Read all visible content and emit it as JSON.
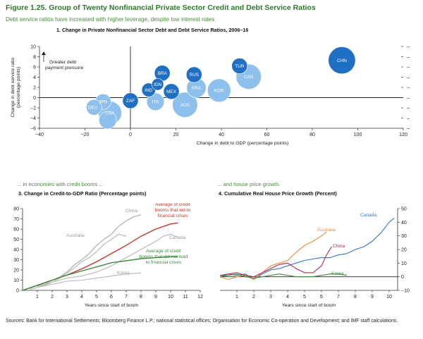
{
  "figure": {
    "title": "Figure 1.25. Group of Twenty Nonfinancial Private Sector Credit and Debt Service Ratios",
    "subtitle": "Debt service ratios have increased with higher leverage, despite low interest rates.",
    "section_left": "... in economies with credit booms ...",
    "section_right": "... and house price growth.",
    "sources": "Sources: Bank for International Settlements; Bloomberg Finance L.P.; national statistical offices; Organisation for Economic Co-operation and Development; and IMF staff calculations."
  },
  "chart_data": [
    {
      "type": "scatter",
      "title": "1. Change in Private Nonfinancial Sector Debt and Debt Service Ratios, 2006–16",
      "xlabel": "Change in debt to GDP (percentage points)",
      "ylabel": "Change in debt service ratio (percentage points)",
      "xlim": [
        -40,
        120
      ],
      "ylim": [
        -6,
        10
      ],
      "xticks": [
        -40,
        -20,
        0,
        20,
        40,
        60,
        80,
        100,
        120
      ],
      "yticks": [
        -6,
        -4,
        -2,
        0,
        2,
        4,
        6,
        8,
        10
      ],
      "annotation": "Greater debt payment pressure",
      "colors": {
        "dark": "#1f6fc2",
        "light": "#8ec0ee"
      },
      "points": [
        {
          "label": "CHN",
          "x": 93,
          "y": 7.3,
          "size": 12,
          "shade": "dark"
        },
        {
          "label": "TUR",
          "x": 48,
          "y": 6.2,
          "size": 6,
          "shade": "dark"
        },
        {
          "label": "CAN",
          "x": 52,
          "y": 4.1,
          "size": 11,
          "shade": "light"
        },
        {
          "label": "RUS",
          "x": 28,
          "y": 4.5,
          "size": 6,
          "shade": "dark"
        },
        {
          "label": "KOR",
          "x": 39,
          "y": 1.4,
          "size": 10,
          "shade": "light"
        },
        {
          "label": "FRA",
          "x": 29,
          "y": 1.9,
          "size": 8,
          "shade": "light"
        },
        {
          "label": "BRA",
          "x": 14,
          "y": 4.8,
          "size": 6,
          "shade": "dark"
        },
        {
          "label": "IDN",
          "x": 12,
          "y": 2.6,
          "size": 4,
          "shade": "dark"
        },
        {
          "label": "IND",
          "x": 8,
          "y": 1.5,
          "size": 5,
          "shade": "dark"
        },
        {
          "label": "MEX",
          "x": 18,
          "y": 1.2,
          "size": 6,
          "shade": "dark"
        },
        {
          "label": "ITA",
          "x": 11,
          "y": -0.8,
          "size": 7,
          "shade": "light"
        },
        {
          "label": "AUS",
          "x": 24,
          "y": -1.4,
          "size": 11,
          "shade": "light"
        },
        {
          "label": "ZAF",
          "x": 0,
          "y": -0.6,
          "size": 6,
          "shade": "dark"
        },
        {
          "label": "JPN",
          "x": -12,
          "y": -0.8,
          "size": 6,
          "shade": "light"
        },
        {
          "label": "DEU",
          "x": -16,
          "y": -1.9,
          "size": 6,
          "shade": "light"
        },
        {
          "label": "USA",
          "x": -9,
          "y": -3.0,
          "size": 10,
          "shade": "light"
        },
        {
          "label": "GBR",
          "x": -10,
          "y": -4.4,
          "size": 7,
          "shade": "light"
        }
      ]
    },
    {
      "type": "line",
      "title": "3. Change in Credit-to-GDP Ratio (Percentage points)",
      "xlabel": "Years since start of boom",
      "xlim": [
        0,
        12
      ],
      "ylim": [
        0,
        80
      ],
      "xticks": [
        1,
        2,
        3,
        4,
        5,
        6,
        7,
        8,
        9,
        10,
        11,
        12
      ],
      "yticks": [
        0,
        10,
        20,
        30,
        40,
        50,
        60,
        70,
        80
      ],
      "series": [
        {
          "name": "China",
          "color": "#a8a8a8",
          "width": 1.1,
          "points": [
            [
              0.5,
              2
            ],
            [
              1,
              5
            ],
            [
              1.5,
              6
            ],
            [
              2,
              10
            ],
            [
              2.5,
              13
            ],
            [
              3,
              18
            ],
            [
              3.5,
              25
            ],
            [
              4,
              30
            ],
            [
              4.5,
              36
            ],
            [
              5,
              44
            ],
            [
              5.5,
              50
            ],
            [
              6,
              55
            ],
            [
              6.5,
              63
            ],
            [
              7,
              68
            ],
            [
              7.5,
              72
            ],
            [
              8,
              74
            ]
          ]
        },
        {
          "name": "Australia",
          "color": "#b4b4b4",
          "width": 1.1,
          "points": [
            [
              0.5,
              1
            ],
            [
              1,
              3
            ],
            [
              1.5,
              5
            ],
            [
              2,
              8
            ],
            [
              2.5,
              12
            ],
            [
              3,
              17
            ],
            [
              3.5,
              22
            ],
            [
              4,
              28
            ],
            [
              4.5,
              32
            ],
            [
              5,
              38
            ],
            [
              5.5,
              45
            ],
            [
              6,
              50
            ],
            [
              6.5,
              55
            ],
            [
              7,
              53
            ]
          ]
        },
        {
          "name": "Canada",
          "color": "#b4b4b4",
          "width": 1.1,
          "points": [
            [
              1,
              4
            ],
            [
              2,
              8
            ],
            [
              3,
              12
            ],
            [
              4,
              14
            ],
            [
              5,
              18
            ],
            [
              6,
              24
            ],
            [
              7,
              32
            ],
            [
              8,
              40
            ],
            [
              9,
              48
            ],
            [
              9.5,
              53
            ],
            [
              10,
              55
            ],
            [
              10.5,
              52
            ]
          ]
        },
        {
          "name": "Korea",
          "color": "#b8b8b8",
          "width": 1.1,
          "points": [
            [
              1,
              3
            ],
            [
              2,
              6
            ],
            [
              3,
              9
            ],
            [
              4,
              10
            ],
            [
              5,
              12
            ],
            [
              6,
              14
            ],
            [
              7,
              16
            ],
            [
              8,
              17
            ]
          ]
        },
        {
          "name": "Average of credit booms that led to financial crises",
          "color": "#c0392b",
          "width": 1.4,
          "points": [
            [
              0,
              0
            ],
            [
              1,
              5
            ],
            [
              2,
              10
            ],
            [
              3,
              15
            ],
            [
              4,
              21
            ],
            [
              5,
              28
            ],
            [
              6,
              36
            ],
            [
              7,
              44
            ],
            [
              8,
              53
            ],
            [
              9,
              60
            ],
            [
              10,
              65
            ],
            [
              10.5,
              66
            ]
          ]
        },
        {
          "name": "Average of credit booms that did not lead to financial crises",
          "color": "#3c8c3c",
          "width": 1.4,
          "points": [
            [
              0,
              0
            ],
            [
              1,
              5
            ],
            [
              2,
              10
            ],
            [
              3,
              15
            ],
            [
              4,
              19
            ],
            [
              5,
              23
            ],
            [
              6,
              27
            ],
            [
              7,
              29
            ],
            [
              8,
              31
            ],
            [
              9,
              32
            ],
            [
              10,
              33
            ],
            [
              10.5,
              33
            ]
          ]
        }
      ],
      "line_labels": [
        {
          "text": "China",
          "color": "#999999",
          "lines": [
            "China"
          ]
        },
        {
          "text": "Australia",
          "color": "#999999",
          "lines": [
            "Australia"
          ]
        },
        {
          "text": "Canada",
          "color": "#999999",
          "lines": [
            "Canada"
          ]
        },
        {
          "text": "Korea",
          "color": "#999999",
          "lines": [
            "Korea"
          ]
        },
        {
          "text": "Average of credit booms that led to financial crises",
          "color": "#c0392b",
          "lines": [
            "Average of credit",
            "booms that led to",
            "financial crises"
          ]
        },
        {
          "text": "Average of credit booms that did not lead to financial crises",
          "color": "#3c8c3c",
          "lines": [
            "Average of credit",
            "booms that did not lead",
            "to financial crises"
          ]
        }
      ]
    },
    {
      "type": "line",
      "title": "4. Cumulative Real House Price Growth (Percent)",
      "xlabel": "Years since start of boom",
      "xlim": [
        0,
        10.5
      ],
      "ylim": [
        -10,
        50
      ],
      "xticks": [
        1,
        2,
        3,
        4,
        5,
        6,
        7,
        8,
        9,
        10
      ],
      "yticks": [
        -10,
        0,
        10,
        20,
        30,
        40,
        50
      ],
      "series": [
        {
          "name": "Canada",
          "color": "#2f78c4",
          "width": 1.1,
          "points": [
            [
              0,
              0
            ],
            [
              0.5,
              2
            ],
            [
              1,
              1
            ],
            [
              1.5,
              2
            ],
            [
              2,
              -2
            ],
            [
              2.5,
              2
            ],
            [
              3,
              5
            ],
            [
              3.5,
              6
            ],
            [
              4,
              8
            ],
            [
              4.5,
              10
            ],
            [
              5,
              12
            ],
            [
              5.5,
              13
            ],
            [
              6,
              14
            ],
            [
              6.5,
              14
            ],
            [
              7,
              16
            ],
            [
              7.5,
              17
            ],
            [
              8,
              20
            ],
            [
              8.5,
              22
            ],
            [
              9,
              26
            ],
            [
              9.5,
              32
            ],
            [
              10,
              40
            ],
            [
              10.3,
              43
            ]
          ]
        },
        {
          "name": "Australia",
          "color": "#ef8a3a",
          "width": 1.1,
          "points": [
            [
              0,
              0
            ],
            [
              0.5,
              -2
            ],
            [
              1,
              0
            ],
            [
              1.5,
              1
            ],
            [
              2,
              -2
            ],
            [
              2.5,
              3
            ],
            [
              3,
              8
            ],
            [
              3.5,
              10
            ],
            [
              4,
              12
            ],
            [
              4.5,
              18
            ],
            [
              5,
              23
            ],
            [
              5.5,
              26
            ],
            [
              6,
              30
            ],
            [
              6.3,
              33
            ]
          ]
        },
        {
          "name": "China",
          "color": "#b0284b",
          "width": 1.1,
          "points": [
            [
              0,
              1
            ],
            [
              0.5,
              2
            ],
            [
              1,
              3
            ],
            [
              1.5,
              1
            ],
            [
              2,
              0
            ],
            [
              2.5,
              3
            ],
            [
              3,
              6
            ],
            [
              3.5,
              9
            ],
            [
              4,
              10
            ],
            [
              4.5,
              6
            ],
            [
              5,
              3
            ],
            [
              5.5,
              3
            ],
            [
              6,
              8
            ],
            [
              6.3,
              16
            ],
            [
              6.6,
              22
            ]
          ]
        },
        {
          "name": "Korea",
          "color": "#3c8c3c",
          "width": 1.1,
          "points": [
            [
              0,
              0
            ],
            [
              0.5,
              1
            ],
            [
              1,
              2
            ],
            [
              1.5,
              0
            ],
            [
              2,
              -1
            ],
            [
              2.5,
              0
            ],
            [
              3,
              1
            ],
            [
              3.5,
              2
            ],
            [
              4,
              1
            ],
            [
              4.5,
              0
            ],
            [
              5,
              0
            ],
            [
              5.5,
              0
            ],
            [
              6,
              1
            ],
            [
              6.5,
              2
            ],
            [
              7,
              2
            ],
            [
              7.5,
              1
            ]
          ]
        }
      ],
      "line_labels": [
        {
          "text": "Canada",
          "color": "#2f78c4",
          "lines": [
            "Canada"
          ]
        },
        {
          "text": "Australia",
          "color": "#ef8a3a",
          "lines": [
            "Australia"
          ]
        },
        {
          "text": "China",
          "color": "#b0284b",
          "lines": [
            "China"
          ]
        },
        {
          "text": "Korea",
          "color": "#3c8c3c",
          "lines": [
            "Korea"
          ]
        }
      ]
    }
  ]
}
